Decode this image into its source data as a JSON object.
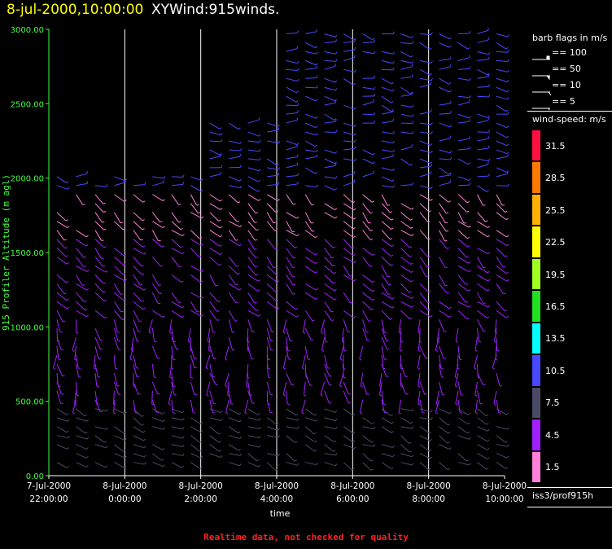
{
  "header": {
    "date_time": "8-jul-2000,10:00:00",
    "product": "XYWind:915winds."
  },
  "footer": {
    "note": "Realtime data, not checked for quality"
  },
  "legend": {
    "barb_title": "barb flags in m/s",
    "barb_items": [
      "== 100",
      "== 50",
      "== 10",
      "== 5"
    ],
    "speed_title": "wind-speed: m/s",
    "station": "iss3/prof915h",
    "colors": [
      {
        "label": "31.5",
        "color": "#ff1040"
      },
      {
        "label": "28.5",
        "color": "#ff7a00"
      },
      {
        "label": "25.5",
        "color": "#ffb000"
      },
      {
        "label": "22.5",
        "color": "#ffff00"
      },
      {
        "label": "19.5",
        "color": "#a0ff20"
      },
      {
        "label": "16.5",
        "color": "#20e020"
      },
      {
        "label": "13.5",
        "color": "#00ffff"
      },
      {
        "label": "10.5",
        "color": "#4848ff"
      },
      {
        "label": "7.5",
        "color": "#4a4a66"
      },
      {
        "label": "4.5",
        "color": "#a020ff"
      },
      {
        "label": "1.5",
        "color": "#ff80d8"
      }
    ]
  },
  "chart_data": {
    "type": "scatter",
    "xlabel": "time",
    "ylabel": "915 Profiler Altitude (m agl)",
    "ylim": [
      0,
      3000
    ],
    "y_ticks": [
      "0.00",
      "500.00",
      "1000.00",
      "1500.00",
      "2000.00",
      "2500.00",
      "3000.00"
    ],
    "x_ticks": [
      {
        "date": "7-Jul-2000",
        "time": "22:00:00"
      },
      {
        "date": "8-Jul-2000",
        "time": "0:00:00"
      },
      {
        "date": "8-Jul-2000",
        "time": "2:00:00"
      },
      {
        "date": "8-Jul-2000",
        "time": "4:00:00"
      },
      {
        "date": "8-Jul-2000",
        "time": "6:00:00"
      },
      {
        "date": "8-Jul-2000",
        "time": "8:00:00"
      },
      {
        "date": "8-Jul-2000",
        "time": "10:00:00"
      }
    ],
    "grid": "vertical lines at each time tick",
    "series_description_levels": [
      {
        "alt_range": [
          0,
          500
        ],
        "dominant_color": "#4a4a66"
      },
      {
        "alt_range": [
          500,
          1000
        ],
        "dominant_color": "#a020ff"
      },
      {
        "alt_range": [
          1000,
          1600
        ],
        "dominant_color": "#a020ff"
      },
      {
        "alt_range": [
          1600,
          1900
        ],
        "dominant_color": "#ff80d8"
      },
      {
        "alt_range": [
          1900,
          3000
        ],
        "dominant_color": "#4848ff"
      }
    ]
  }
}
